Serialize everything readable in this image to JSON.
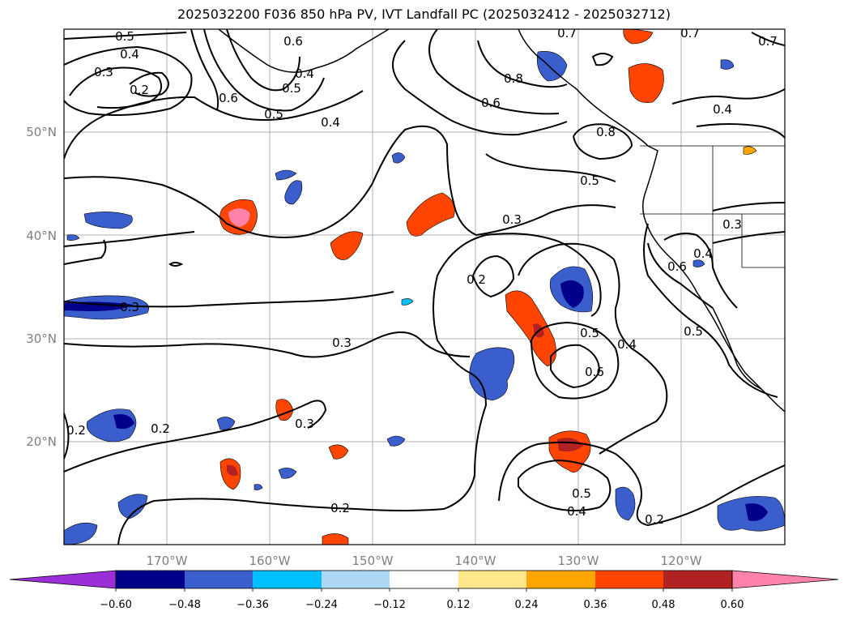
{
  "title": "2025032200 F036 850 hPa PV, IVT Landfall PC (2025032412 - 2025032712)",
  "map": {
    "lat_labels": [
      "50°N",
      "40°N",
      "30°N",
      "20°N"
    ],
    "lon_labels": [
      "170°W",
      "160°W",
      "150°W",
      "140°W",
      "130°W",
      "120°W"
    ],
    "contour_labels": [
      "0.5",
      "0.4",
      "0.3",
      "0.2",
      "0.6",
      "0.5",
      "0.4",
      "0.7",
      "0.8",
      "0.6",
      "0.8",
      "0.5",
      "0.3",
      "0.2",
      "0.3",
      "0.3",
      "0.2",
      "0.2",
      "0.3",
      "0.5",
      "0.6",
      "0.4",
      "0.5",
      "0.4",
      "0.2",
      "0.2",
      "0.5",
      "0.4",
      "0.6",
      "0.7",
      "0.7",
      "0.4",
      "0.3",
      "0.6",
      "0.4",
      "0.5"
    ]
  },
  "colorbar": {
    "ticks": [
      "−0.60",
      "−0.48",
      "−0.36",
      "−0.24",
      "−0.12",
      "0.12",
      "0.24",
      "0.36",
      "0.48",
      "0.60"
    ],
    "colors": [
      "#9b30d9",
      "#00008b",
      "#3a5fcd",
      "#00bfff",
      "#add8f5",
      "#ffffff",
      "#ffe88c",
      "#ffa500",
      "#ff4500",
      "#b22222",
      "#ff82ab"
    ]
  }
}
